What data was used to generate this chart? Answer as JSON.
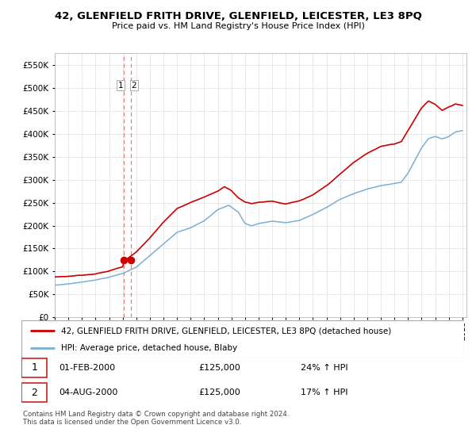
{
  "title": "42, GLENFIELD FRITH DRIVE, GLENFIELD, LEICESTER, LE3 8PQ",
  "subtitle": "Price paid vs. HM Land Registry's House Price Index (HPI)",
  "ytick_values": [
    0,
    50000,
    100000,
    150000,
    200000,
    250000,
    300000,
    350000,
    400000,
    450000,
    500000,
    550000
  ],
  "ylim": [
    0,
    575000
  ],
  "legend_line1": "42, GLENFIELD FRITH DRIVE, GLENFIELD, LEICESTER, LE3 8PQ (detached house)",
  "legend_line2": "HPI: Average price, detached house, Blaby",
  "purchase1_date": "01-FEB-2000",
  "purchase1_price": "£125,000",
  "purchase1_hpi": "24% ↑ HPI",
  "purchase2_date": "04-AUG-2000",
  "purchase2_price": "£125,000",
  "purchase2_hpi": "17% ↑ HPI",
  "footer": "Contains HM Land Registry data © Crown copyright and database right 2024.\nThis data is licensed under the Open Government Licence v3.0.",
  "line_color_red": "#cc0000",
  "line_color_blue": "#7bafd4",
  "marker_color": "#cc0000",
  "vline_color": "#e08080",
  "grid_color": "#e0e0e0",
  "purchase1_t": 2000.083,
  "purchase2_t": 2000.583,
  "purchase_price": 125000,
  "xlim_start": 1995,
  "xlim_end": 2025.3
}
